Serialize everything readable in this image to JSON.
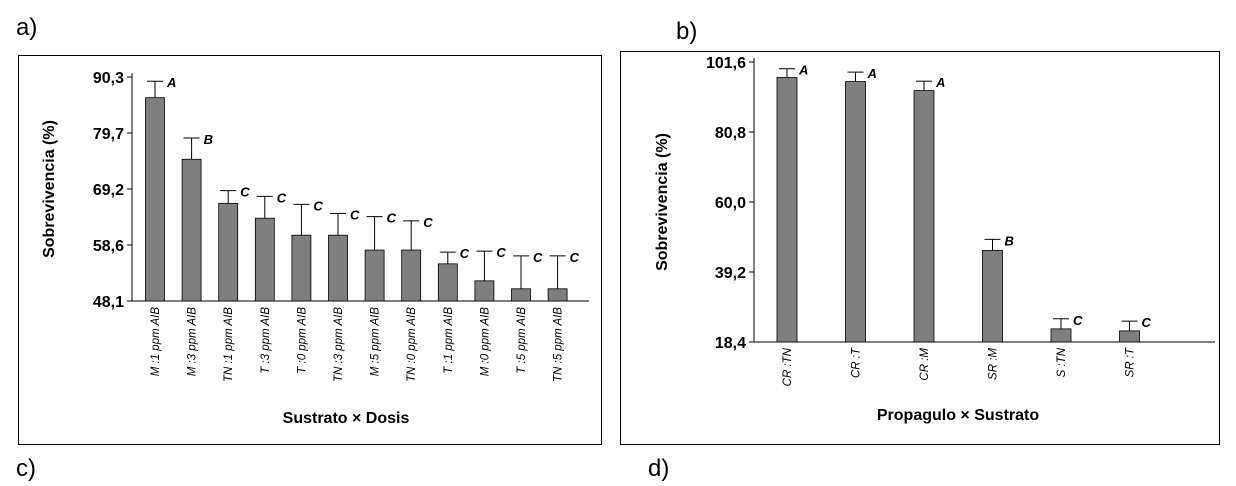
{
  "panels": {
    "a": "a)",
    "b": "b)",
    "c": "c)",
    "d": "d)"
  },
  "chart_data": [
    {
      "type": "bar",
      "panel": "a)",
      "categories": [
        "M :1 ppm AIB",
        "M :3 ppm AIB",
        "TN :1 ppm AIB",
        "T :3 ppm AIB",
        "T :0 ppm AIB",
        "TN :3 ppm AIB",
        "M :5 ppm AIB",
        "TN :0 ppm AIB",
        "T :1 ppm AIB",
        "M :0 ppm AIB",
        "T :5 ppm AIB",
        "TN :5 ppm AIB"
      ],
      "values": [
        86.4,
        74.8,
        66.5,
        63.7,
        60.5,
        60.5,
        57.7,
        57.7,
        55.1,
        51.9,
        50.4,
        50.4
      ],
      "error": [
        3.1,
        4.0,
        2.4,
        4.1,
        5.8,
        4.1,
        6.3,
        5.5,
        2.2,
        5.6,
        6.2,
        6.2
      ],
      "group_letters": [
        "A",
        "B",
        "C",
        "C",
        "C",
        "C",
        "C",
        "C",
        "C",
        "C",
        "C",
        "C"
      ],
      "title": "",
      "xlabel": "Sustrato × Dosis",
      "ylabel": "Sobrevivencia (%)",
      "ylim": [
        48.1,
        90.3
      ],
      "yticks": [
        "48,1",
        "58,6",
        "69,2",
        "79,7",
        "90,3"
      ],
      "bar_color": "#7f7f7f"
    },
    {
      "type": "bar",
      "panel": "b)",
      "categories": [
        "CR :TN",
        "CR :T",
        "CR :M",
        "SR :M",
        "S :TN",
        "SR :T"
      ],
      "values": [
        97.0,
        95.8,
        93.1,
        45.6,
        22.3,
        21.7
      ],
      "error": [
        2.6,
        2.8,
        2.8,
        3.3,
        3.0,
        2.9
      ],
      "group_letters": [
        "A",
        "A",
        "A",
        "B",
        "C",
        "C"
      ],
      "title": "",
      "xlabel": "Propagulo × Sustrato",
      "ylabel": "Sobrevivencia (%)",
      "ylim": [
        18.4,
        101.6
      ],
      "yticks": [
        "18,4",
        "39,2",
        "60,0",
        "80,8",
        "101,6"
      ],
      "bar_color": "#7f7f7f"
    }
  ]
}
